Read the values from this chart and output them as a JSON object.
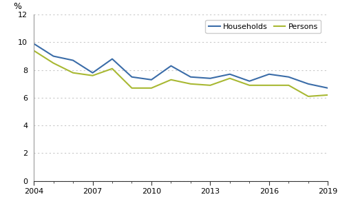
{
  "years": [
    2004,
    2005,
    2006,
    2007,
    2008,
    2009,
    2010,
    2011,
    2012,
    2013,
    2014,
    2015,
    2016,
    2017,
    2018,
    2019
  ],
  "households": [
    9.9,
    9.0,
    8.7,
    7.8,
    8.8,
    7.5,
    7.3,
    8.3,
    7.5,
    7.4,
    7.7,
    7.2,
    7.7,
    7.5,
    7.0,
    6.7
  ],
  "persons": [
    9.4,
    8.5,
    7.8,
    7.6,
    8.1,
    6.7,
    6.7,
    7.3,
    7.0,
    6.9,
    7.4,
    6.9,
    6.9,
    6.9,
    6.1,
    6.2
  ],
  "households_color": "#3a6ca8",
  "persons_color": "#a8b832",
  "households_label": "Households",
  "persons_label": "Persons",
  "percent_label": "%",
  "ylim": [
    0,
    12
  ],
  "yticks": [
    0,
    2,
    4,
    6,
    8,
    10,
    12
  ],
  "xticks_labeled": [
    2004,
    2007,
    2010,
    2013,
    2016,
    2019
  ],
  "xlim": [
    2004,
    2019
  ],
  "grid_color": "#c8c8c8",
  "background_color": "#ffffff",
  "line_width": 1.5
}
